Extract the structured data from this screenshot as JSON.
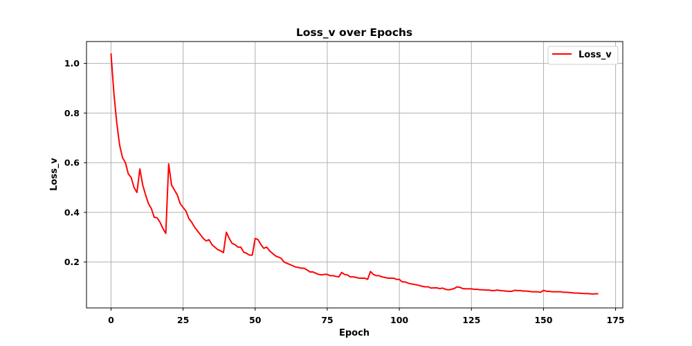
{
  "chart_data": {
    "type": "line",
    "title": "Loss_v over Epochs",
    "xlabel": "Epoch",
    "ylabel": "Loss_v",
    "xlim": [
      -8.5,
      177.5
    ],
    "ylim": [
      0.015,
      1.088
    ],
    "xticks": [
      0,
      25,
      50,
      75,
      100,
      125,
      150,
      175
    ],
    "yticks": [
      0.2,
      0.4,
      0.6,
      0.8,
      1.0
    ],
    "xtick_labels": [
      "0",
      "25",
      "50",
      "75",
      "100",
      "125",
      "150",
      "175"
    ],
    "ytick_labels": [
      "0.2",
      "0.4",
      "0.6",
      "0.8",
      "1.0"
    ],
    "grid": true,
    "legend_position": "top-right",
    "series": [
      {
        "name": "Loss_v",
        "color": "#ff0000",
        "x": [
          0,
          1,
          2,
          3,
          4,
          5,
          6,
          7,
          8,
          9,
          10,
          11,
          12,
          13,
          14,
          15,
          16,
          17,
          18,
          19,
          20,
          21,
          22,
          23,
          24,
          25,
          26,
          27,
          28,
          29,
          30,
          31,
          32,
          33,
          34,
          35,
          36,
          37,
          38,
          39,
          40,
          41,
          42,
          43,
          44,
          45,
          46,
          47,
          48,
          49,
          50,
          51,
          52,
          53,
          54,
          55,
          56,
          57,
          58,
          59,
          60,
          61,
          62,
          63,
          64,
          65,
          66,
          67,
          68,
          69,
          70,
          71,
          72,
          73,
          74,
          75,
          76,
          77,
          78,
          79,
          80,
          81,
          82,
          83,
          84,
          85,
          86,
          87,
          88,
          89,
          90,
          91,
          92,
          93,
          94,
          95,
          96,
          97,
          98,
          99,
          100,
          101,
          102,
          103,
          104,
          105,
          106,
          107,
          108,
          109,
          110,
          111,
          112,
          113,
          114,
          115,
          116,
          117,
          118,
          119,
          120,
          121,
          122,
          123,
          124,
          125,
          126,
          127,
          128,
          129,
          130,
          131,
          132,
          133,
          134,
          135,
          136,
          137,
          138,
          139,
          140,
          141,
          142,
          143,
          144,
          145,
          146,
          147,
          148,
          149,
          150,
          151,
          152,
          153,
          154,
          155,
          156,
          157,
          158,
          159,
          160,
          161,
          162,
          163,
          164,
          165,
          166,
          167,
          168,
          169
        ],
        "values": [
          1.04,
          0.88,
          0.76,
          0.67,
          0.62,
          0.6,
          0.555,
          0.54,
          0.5,
          0.48,
          0.575,
          0.51,
          0.47,
          0.435,
          0.415,
          0.38,
          0.378,
          0.36,
          0.335,
          0.315,
          0.595,
          0.51,
          0.49,
          0.47,
          0.435,
          0.42,
          0.405,
          0.375,
          0.36,
          0.34,
          0.325,
          0.31,
          0.295,
          0.285,
          0.29,
          0.27,
          0.26,
          0.25,
          0.245,
          0.238,
          0.32,
          0.295,
          0.275,
          0.27,
          0.26,
          0.26,
          0.24,
          0.235,
          0.228,
          0.228,
          0.295,
          0.29,
          0.27,
          0.255,
          0.26,
          0.245,
          0.235,
          0.225,
          0.22,
          0.215,
          0.2,
          0.195,
          0.19,
          0.185,
          0.18,
          0.178,
          0.175,
          0.175,
          0.168,
          0.16,
          0.16,
          0.155,
          0.15,
          0.148,
          0.15,
          0.15,
          0.145,
          0.145,
          0.142,
          0.14,
          0.158,
          0.15,
          0.148,
          0.14,
          0.14,
          0.138,
          0.135,
          0.135,
          0.135,
          0.13,
          0.162,
          0.15,
          0.145,
          0.145,
          0.14,
          0.138,
          0.135,
          0.135,
          0.135,
          0.13,
          0.13,
          0.12,
          0.12,
          0.115,
          0.112,
          0.11,
          0.108,
          0.105,
          0.102,
          0.1,
          0.1,
          0.095,
          0.096,
          0.096,
          0.093,
          0.095,
          0.09,
          0.088,
          0.09,
          0.093,
          0.1,
          0.098,
          0.093,
          0.092,
          0.092,
          0.092,
          0.09,
          0.09,
          0.088,
          0.088,
          0.087,
          0.087,
          0.085,
          0.085,
          0.087,
          0.085,
          0.084,
          0.083,
          0.082,
          0.082,
          0.086,
          0.085,
          0.085,
          0.083,
          0.083,
          0.082,
          0.08,
          0.08,
          0.08,
          0.078,
          0.086,
          0.082,
          0.082,
          0.08,
          0.08,
          0.08,
          0.08,
          0.078,
          0.078,
          0.077,
          0.076,
          0.075,
          0.075,
          0.074,
          0.073,
          0.073,
          0.072,
          0.071,
          0.072,
          0.072
        ]
      }
    ]
  }
}
